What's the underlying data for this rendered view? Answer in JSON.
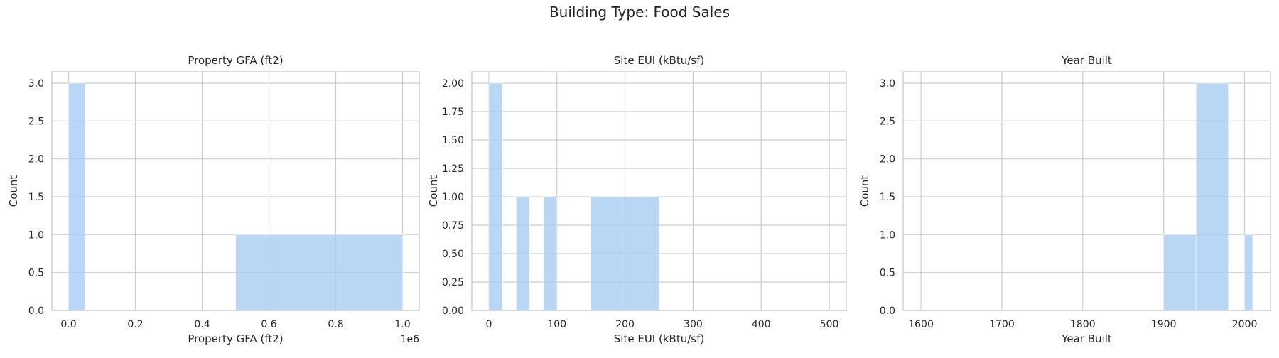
{
  "figure": {
    "title": "Building Type: Food Sales",
    "bar_color": "#a7cdf3",
    "grid_color": "#cccccc",
    "spine_color": "#cccccc"
  },
  "chart_data": [
    {
      "type": "bar",
      "title": "Property GFA (ft2)",
      "xlabel": "Property GFA (ft2)",
      "ylabel": "Count",
      "offset_text": "1e6",
      "xlim": [
        -50000,
        1050000
      ],
      "ylim": [
        0,
        3.15
      ],
      "xticks": [
        0,
        200000,
        400000,
        600000,
        800000,
        1000000
      ],
      "xtick_labels": [
        "0.0",
        "0.2",
        "0.4",
        "0.6",
        "0.8",
        "1.0"
      ],
      "yticks": [
        0,
        0.5,
        1.0,
        1.5,
        2.0,
        2.5,
        3.0
      ],
      "ytick_labels": [
        "0.0",
        "0.5",
        "1.0",
        "1.5",
        "2.0",
        "2.5",
        "3.0"
      ],
      "grid": true,
      "bins": [
        {
          "x0": 0,
          "x1": 50000,
          "count": 3
        },
        {
          "x0": 500000,
          "x1": 1000000,
          "count": 1
        }
      ]
    },
    {
      "type": "bar",
      "title": "Site EUI (kBtu/sf)",
      "xlabel": "Site EUI (kBtu/sf)",
      "ylabel": "Count",
      "xlim": [
        -25,
        525
      ],
      "ylim": [
        0,
        2.1
      ],
      "xticks": [
        0,
        100,
        200,
        300,
        400,
        500
      ],
      "xtick_labels": [
        "0",
        "100",
        "200",
        "300",
        "400",
        "500"
      ],
      "yticks": [
        0,
        0.25,
        0.5,
        0.75,
        1.0,
        1.25,
        1.5,
        1.75,
        2.0
      ],
      "ytick_labels": [
        "0.00",
        "0.25",
        "0.50",
        "0.75",
        "1.00",
        "1.25",
        "1.50",
        "1.75",
        "2.00"
      ],
      "grid": true,
      "bins": [
        {
          "x0": 0,
          "x1": 20,
          "count": 2
        },
        {
          "x0": 40,
          "x1": 60,
          "count": 1
        },
        {
          "x0": 80,
          "x1": 100,
          "count": 1
        },
        {
          "x0": 150,
          "x1": 250,
          "count": 1
        }
      ]
    },
    {
      "type": "bar",
      "title": "Year Built",
      "xlabel": "Year Built",
      "ylabel": "Count",
      "xlim": [
        1578,
        2032
      ],
      "ylim": [
        0,
        3.15
      ],
      "xticks": [
        1600,
        1700,
        1800,
        1900,
        2000
      ],
      "xtick_labels": [
        "1600",
        "1700",
        "1800",
        "1900",
        "2000"
      ],
      "yticks": [
        0,
        0.5,
        1.0,
        1.5,
        2.0,
        2.5,
        3.0
      ],
      "ytick_labels": [
        "0.0",
        "0.5",
        "1.0",
        "1.5",
        "2.0",
        "2.5",
        "3.0"
      ],
      "grid": true,
      "bins": [
        {
          "x0": 1900,
          "x1": 1940,
          "count": 1
        },
        {
          "x0": 1940,
          "x1": 1980,
          "count": 3
        },
        {
          "x0": 2000,
          "x1": 2010,
          "count": 1
        }
      ]
    }
  ]
}
